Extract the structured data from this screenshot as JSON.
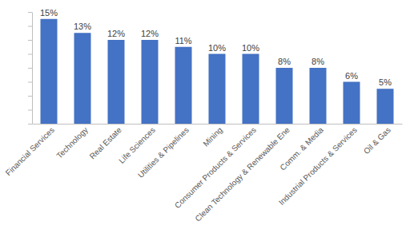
{
  "chart_data": {
    "type": "bar",
    "categories": [
      "Financial Services",
      "Technology",
      "Real Estate",
      "Life Sciences",
      "Utilities & Pipelines",
      "Mining",
      "Consumer Products & Services",
      "Clean Technology & Renewable Ene",
      "Comm. & Media",
      "Industrial Products & Services",
      "Oil & Gas"
    ],
    "values": [
      15,
      13,
      12,
      12,
      11,
      10,
      10,
      8,
      8,
      6,
      5
    ],
    "value_labels": [
      "15%",
      "13%",
      "12%",
      "12%",
      "11%",
      "10%",
      "10%",
      "8%",
      "8%",
      "6%",
      "5%"
    ],
    "color": "#4472c4",
    "ylim": [
      0,
      16
    ],
    "yticks": [
      0,
      2,
      4,
      6,
      8,
      10,
      12,
      14,
      16
    ],
    "tick_labels": "x",
    "data_labels": true,
    "grid": false
  }
}
